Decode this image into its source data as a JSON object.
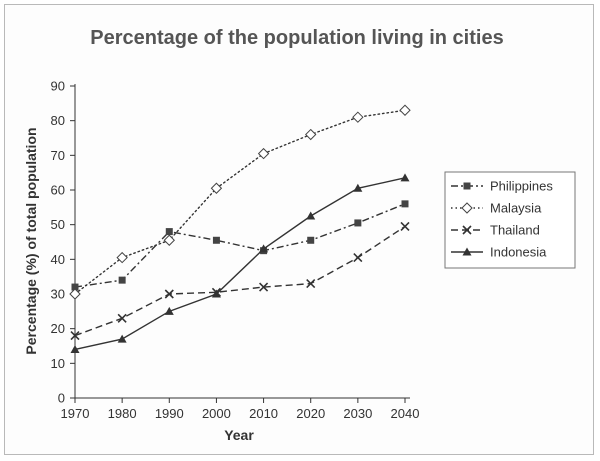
{
  "chart_data": {
    "type": "line",
    "title": "Percentage of the population living in cities",
    "xlabel": "Year",
    "ylabel": "Percentage (%) of total population",
    "x": [
      1970,
      1980,
      1990,
      2000,
      2010,
      2020,
      2030,
      2040
    ],
    "ylim": [
      0,
      90
    ],
    "yticks": [
      0,
      10,
      20,
      30,
      40,
      50,
      60,
      70,
      80,
      90
    ],
    "grid": false,
    "legend_position": "right",
    "series": [
      {
        "name": "Philippines",
        "marker": "square",
        "dash": "dash-dot",
        "values": [
          32,
          34,
          48,
          45.5,
          42.5,
          45.5,
          50.5,
          56
        ]
      },
      {
        "name": "Malaysia",
        "marker": "diamond",
        "dash": "dotted",
        "values": [
          30,
          40.5,
          45.5,
          60.5,
          70.5,
          76,
          81,
          83
        ]
      },
      {
        "name": "Thailand",
        "marker": "x",
        "dash": "dashed",
        "values": [
          18,
          23,
          30,
          30.5,
          32,
          33,
          40.5,
          49.5
        ]
      },
      {
        "name": "Indonesia",
        "marker": "triangle",
        "dash": "solid",
        "values": [
          14,
          17,
          25,
          30,
          43,
          52.5,
          60.5,
          63.5
        ]
      }
    ]
  }
}
